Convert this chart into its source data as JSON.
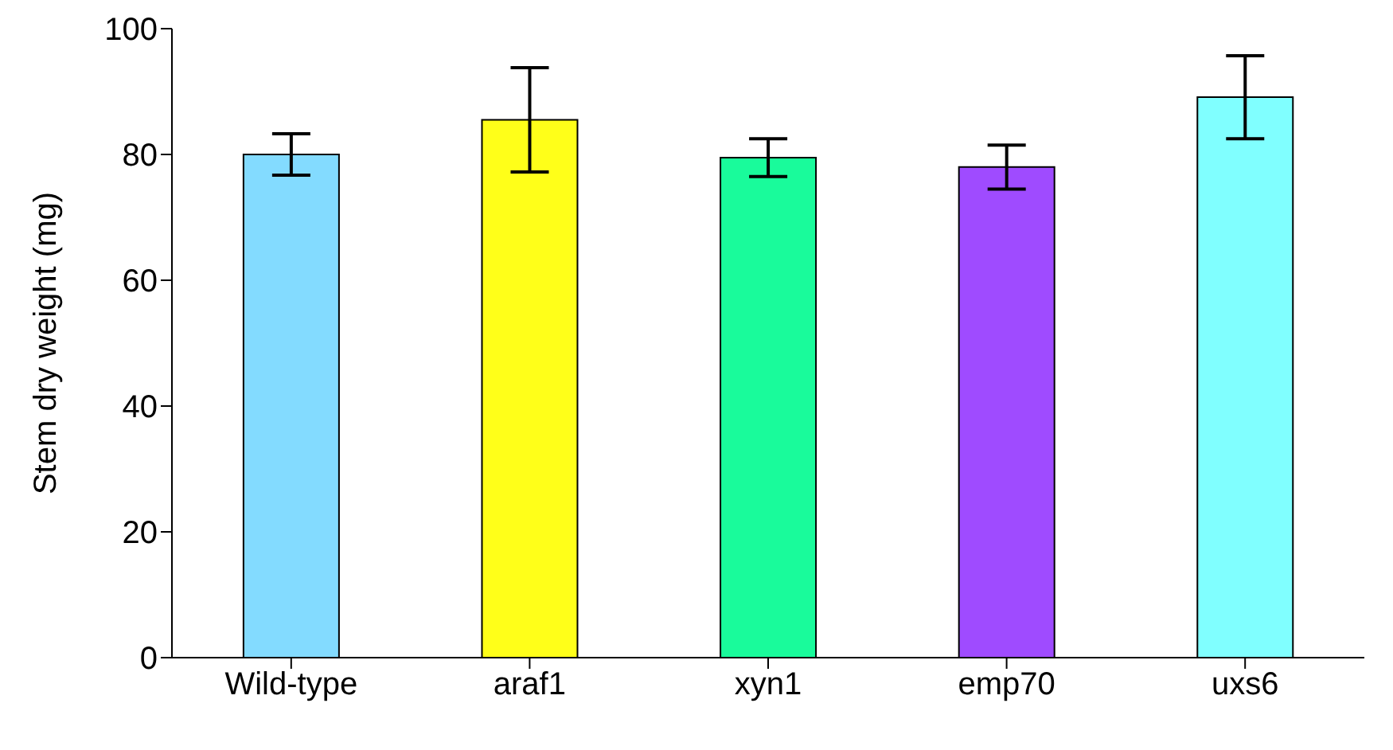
{
  "chart_data": {
    "type": "bar",
    "ylabel": "Stem dry weight (mg)",
    "categories": [
      "Wild-type",
      "araf1",
      "xyn1",
      "emp70",
      "uxs6"
    ],
    "values": [
      80,
      85.5,
      79.5,
      78,
      89.1
    ],
    "errors": [
      3.3,
      8.3,
      3,
      3.5,
      6.6
    ],
    "colors": [
      "#83dbff",
      "#ffff19",
      "#19fb9b",
      "#9f4bff",
      "#80ffff"
    ],
    "ylim": [
      0,
      100
    ],
    "yticks": [
      0,
      20,
      40,
      60,
      80,
      100
    ],
    "grid": false,
    "legend": false
  }
}
